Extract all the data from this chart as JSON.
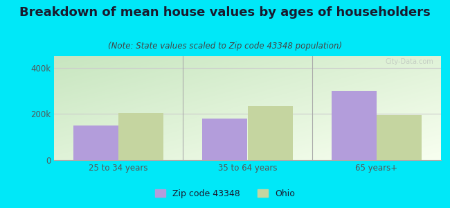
{
  "title": "Breakdown of mean house values by ages of householders",
  "subtitle": "(Note: State values scaled to Zip code 43348 population)",
  "categories": [
    "25 to 34 years",
    "35 to 64 years",
    "65 years+"
  ],
  "zip_values": [
    150000,
    180000,
    300000
  ],
  "ohio_values": [
    205000,
    235000,
    195000
  ],
  "zip_color": "#b39ddb",
  "ohio_color": "#c5d5a0",
  "bar_width": 0.35,
  "ylim": [
    0,
    450000
  ],
  "yticks": [
    0,
    200000,
    400000
  ],
  "ytick_labels": [
    "0",
    "200k",
    "400k"
  ],
  "grad_color_top": "#c8e6c0",
  "grad_color_bottom": "#f4fef0",
  "outer_bg": "#00e8f8",
  "title_fontsize": 13,
  "subtitle_fontsize": 8.5,
  "title_color": "#1a1a2e",
  "subtitle_color": "#444444",
  "tick_color": "#555555",
  "grid_color": "#cccccc",
  "divider_color": "#aaaaaa",
  "legend_labels": [
    "Zip code 43348",
    "Ohio"
  ],
  "watermark": "City-Data.com",
  "watermark_color": "#c0c8c0"
}
